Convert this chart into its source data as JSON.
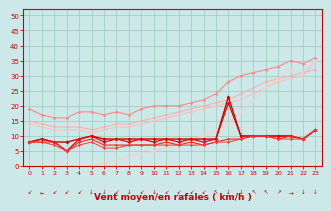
{
  "background_color": "#cce8e8",
  "grid_color": "#99ccbb",
  "xlabel": "Vent moyen/en rafales ( km/h )",
  "xlabel_color": "#cc0000",
  "xlabel_fontsize": 6.5,
  "tick_color": "#cc0000",
  "ylim": [
    0,
    52
  ],
  "xlim": [
    -0.5,
    23.5
  ],
  "yticks": [
    0,
    5,
    10,
    15,
    20,
    25,
    30,
    35,
    40,
    45,
    50
  ],
  "xticks": [
    0,
    1,
    2,
    3,
    4,
    5,
    6,
    7,
    8,
    9,
    10,
    11,
    12,
    13,
    14,
    15,
    16,
    17,
    18,
    19,
    20,
    21,
    22,
    23
  ],
  "lines": [
    {
      "x": [
        0,
        1,
        2,
        3,
        4,
        5,
        6,
        7,
        8,
        9,
        10,
        11,
        12,
        13,
        14,
        15,
        16,
        17,
        18,
        19,
        20,
        21,
        22,
        23
      ],
      "y": [
        15,
        14,
        13,
        13,
        13,
        12,
        13,
        14,
        14,
        15,
        16,
        17,
        18,
        19,
        20,
        21,
        22,
        24,
        26,
        28,
        29,
        30,
        31,
        32
      ],
      "color": "#ffaaaa",
      "lw": 0.7,
      "marker": "o",
      "ms": 1.5
    },
    {
      "x": [
        0,
        1,
        2,
        3,
        4,
        5,
        6,
        7,
        8,
        9,
        10,
        11,
        12,
        13,
        14,
        15,
        16,
        17,
        18,
        19,
        20,
        21,
        22,
        23
      ],
      "y": [
        14,
        13,
        12,
        12,
        12,
        11,
        12,
        13,
        13,
        14,
        15,
        16,
        17,
        18,
        19,
        20,
        21,
        22,
        24,
        26,
        28,
        29,
        30,
        35
      ],
      "color": "#ffbbbb",
      "lw": 0.7,
      "marker": "o",
      "ms": 1.5
    },
    {
      "x": [
        0,
        1,
        2,
        3,
        4,
        5,
        6,
        7,
        8,
        9,
        10,
        11,
        12,
        13,
        14,
        15,
        16,
        17,
        18,
        19,
        20,
        21,
        22,
        23
      ],
      "y": [
        19,
        17,
        16,
        16,
        18,
        18,
        17,
        18,
        17,
        19,
        20,
        20,
        20,
        21,
        22,
        24,
        28,
        30,
        31,
        32,
        33,
        35,
        34,
        36
      ],
      "color": "#ff8888",
      "lw": 0.8,
      "marker": "D",
      "ms": 1.8
    },
    {
      "x": [
        0,
        1,
        2,
        3,
        4,
        5,
        6,
        7,
        8,
        9,
        10,
        11,
        12,
        13,
        14,
        15,
        16,
        17,
        18,
        19,
        20,
        21,
        22,
        23
      ],
      "y": [
        0,
        0,
        0,
        0,
        0,
        0,
        1,
        2,
        3,
        4,
        5,
        6,
        7,
        9,
        10,
        12,
        14,
        18,
        22,
        26,
        29,
        32,
        31,
        35
      ],
      "color": "#ffcccc",
      "lw": 0.7,
      "marker": "o",
      "ms": 1.3
    },
    {
      "x": [
        0,
        1,
        2,
        3,
        4,
        5,
        6,
        7,
        8,
        9,
        10,
        11,
        12,
        13,
        14,
        15,
        16,
        17,
        18,
        19,
        20,
        21,
        22,
        23
      ],
      "y": [
        8,
        9,
        8,
        8,
        9,
        10,
        9,
        9,
        9,
        9,
        9,
        9,
        9,
        9,
        9,
        9,
        23,
        10,
        10,
        10,
        10,
        10,
        9,
        12
      ],
      "color": "#cc0000",
      "lw": 1.0,
      "marker": "D",
      "ms": 2.0
    },
    {
      "x": [
        0,
        1,
        2,
        3,
        4,
        5,
        6,
        7,
        8,
        9,
        10,
        11,
        12,
        13,
        14,
        15,
        16,
        17,
        18,
        19,
        20,
        21,
        22,
        23
      ],
      "y": [
        8,
        9,
        8,
        5,
        9,
        10,
        8,
        9,
        8,
        9,
        8,
        9,
        8,
        9,
        8,
        9,
        21,
        10,
        10,
        10,
        10,
        10,
        9,
        12
      ],
      "color": "#ee0000",
      "lw": 0.9,
      "marker": "D",
      "ms": 1.8
    },
    {
      "x": [
        0,
        1,
        2,
        3,
        4,
        5,
        6,
        7,
        8,
        9,
        10,
        11,
        12,
        13,
        14,
        15,
        16,
        17,
        18,
        19,
        20,
        21,
        22,
        23
      ],
      "y": [
        8,
        8,
        8,
        5,
        8,
        9,
        7,
        7,
        7,
        7,
        7,
        8,
        7,
        8,
        7,
        8,
        9,
        9,
        10,
        10,
        9,
        10,
        9,
        12
      ],
      "color": "#ff2222",
      "lw": 0.8,
      "marker": "D",
      "ms": 1.5
    },
    {
      "x": [
        0,
        1,
        2,
        3,
        4,
        5,
        6,
        7,
        8,
        9,
        10,
        11,
        12,
        13,
        14,
        15,
        16,
        17,
        18,
        19,
        20,
        21,
        22,
        23
      ],
      "y": [
        8,
        8,
        7,
        5,
        7,
        8,
        6,
        6,
        7,
        7,
        7,
        7,
        7,
        7,
        7,
        8,
        8,
        9,
        10,
        10,
        9,
        9,
        9,
        12
      ],
      "color": "#ff3333",
      "lw": 0.7,
      "marker": "D",
      "ms": 1.5
    }
  ],
  "wind_arrows": [
    "↙",
    "←",
    "↙",
    "↙",
    "↙",
    "↓",
    "↓",
    "↙",
    "↓",
    "↙",
    "↓",
    "↙",
    "↙",
    "↙",
    "↙",
    "↖",
    "↓",
    "↓",
    "↖",
    "↖",
    "↗",
    "→",
    "↓",
    "↓"
  ]
}
